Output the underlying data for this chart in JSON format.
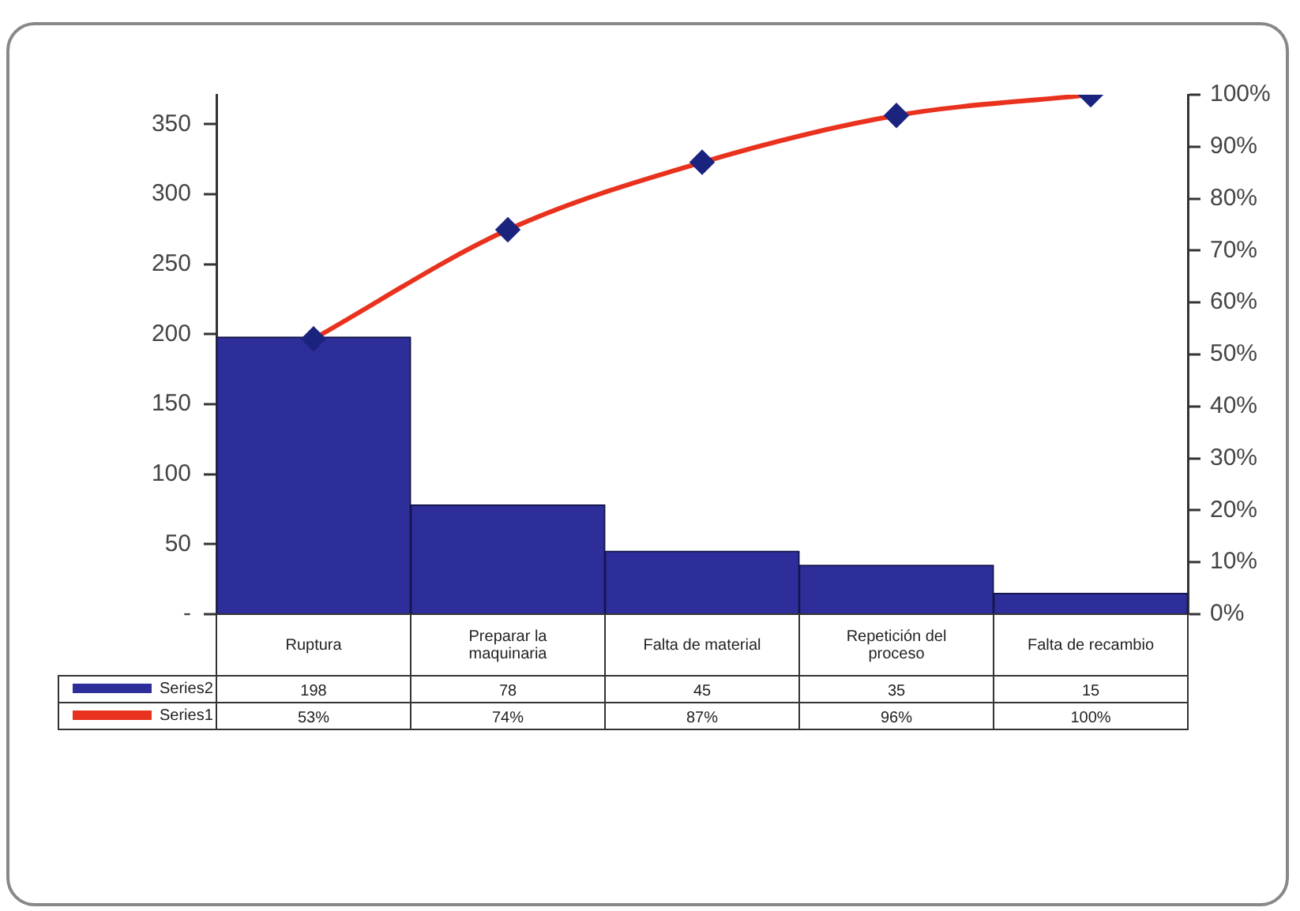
{
  "chart_data": {
    "type": "bar",
    "categories": [
      "Ruptura",
      "Preparar la maquinaria",
      "Falta de material",
      "Repetición del proceso",
      "Falta de recambio"
    ],
    "series": [
      {
        "name": "Series2",
        "color": "#2e2e9a",
        "values": [
          198,
          78,
          45,
          35,
          15
        ],
        "value_labels": [
          "198",
          "78",
          "45",
          "35",
          "15"
        ]
      },
      {
        "name": "Series1",
        "type": "line",
        "axis": "y2",
        "color": "#e8321e",
        "values": [
          53,
          74,
          87,
          96,
          100
        ],
        "value_labels": [
          "53%",
          "74%",
          "87%",
          "96%",
          "100%"
        ]
      }
    ],
    "ylim": [
      0,
      371
    ],
    "yticks": [
      {
        "value": 0,
        "label": "-"
      },
      50,
      100,
      150,
      200,
      250,
      300,
      350
    ],
    "y2lim": [
      0,
      100
    ],
    "y2ticks": [
      {
        "value": 0,
        "label": "0%"
      },
      {
        "value": 10,
        "label": "10%"
      },
      {
        "value": 20,
        "label": "20%"
      },
      {
        "value": 30,
        "label": "30%"
      },
      {
        "value": 40,
        "label": "40%"
      },
      {
        "value": 50,
        "label": "50%"
      },
      {
        "value": 60,
        "label": "60%"
      },
      {
        "value": 70,
        "label": "70%"
      },
      {
        "value": 80,
        "label": "80%"
      },
      {
        "value": 90,
        "label": "90%"
      },
      {
        "value": 100,
        "label": "100%"
      }
    ],
    "marker": "diamond",
    "grid": false,
    "legend": "bottom left"
  }
}
